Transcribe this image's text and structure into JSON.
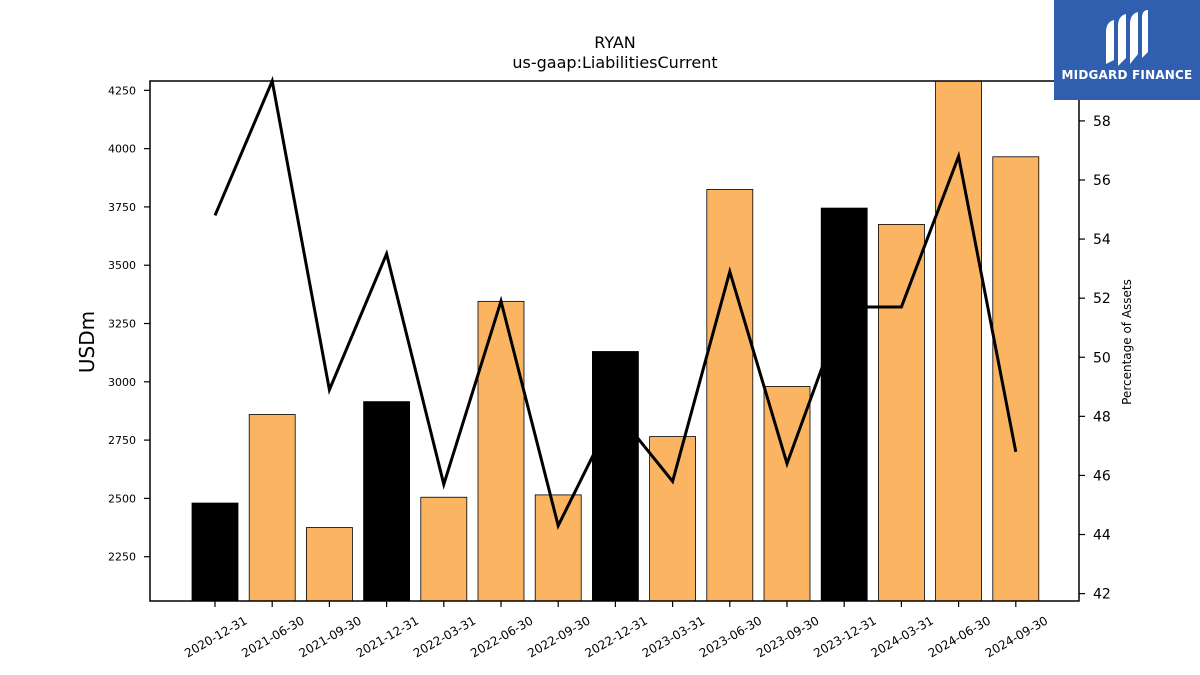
{
  "chart_data": {
    "type": "bar",
    "title": "RYAN",
    "subtitle": "us-gaap:LiabilitiesCurrent",
    "ylabel": "USDm",
    "y2label": "Percentage of Assets",
    "categories": [
      "2020-12-31",
      "2021-06-30",
      "2021-09-30",
      "2021-12-31",
      "2022-03-31",
      "2022-06-30",
      "2022-09-30",
      "2022-12-31",
      "2023-03-31",
      "2023-06-30",
      "2023-09-30",
      "2023-12-31",
      "2024-03-31",
      "2024-06-30",
      "2024-09-30"
    ],
    "series": [
      {
        "type": "bar",
        "values": [
          2480,
          2860,
          2375,
          2915,
          2505,
          3345,
          2515,
          3130,
          2765,
          3825,
          2980,
          3745,
          3675,
          4290,
          3965
        ],
        "colors": [
          "#000000",
          "#fbb462",
          "#fbb462",
          "#000000",
          "#fbb462",
          "#fbb462",
          "#fbb462",
          "#000000",
          "#fbb462",
          "#fbb462",
          "#fbb462",
          "#000000",
          "#fbb462",
          "#fbb462",
          "#fbb462"
        ]
      },
      {
        "type": "line",
        "axis": "right",
        "color": "#000000",
        "values": [
          54.8,
          59.4,
          48.9,
          53.5,
          45.7,
          51.9,
          44.3,
          48.2,
          45.8,
          52.9,
          46.4,
          51.7,
          51.7,
          56.8,
          46.8
        ]
      }
    ],
    "ylim": [
      2060,
      4290
    ],
    "y2lim": [
      41.75,
      59.35
    ],
    "yticks": [
      2250,
      2500,
      2750,
      3000,
      3250,
      3500,
      3750,
      4000,
      4250
    ],
    "y2ticks": [
      42,
      44,
      46,
      48,
      50,
      52,
      54,
      56,
      58
    ],
    "grid": false,
    "legend": "none"
  },
  "logo": {
    "text": "MIDGARD FINANCE"
  }
}
